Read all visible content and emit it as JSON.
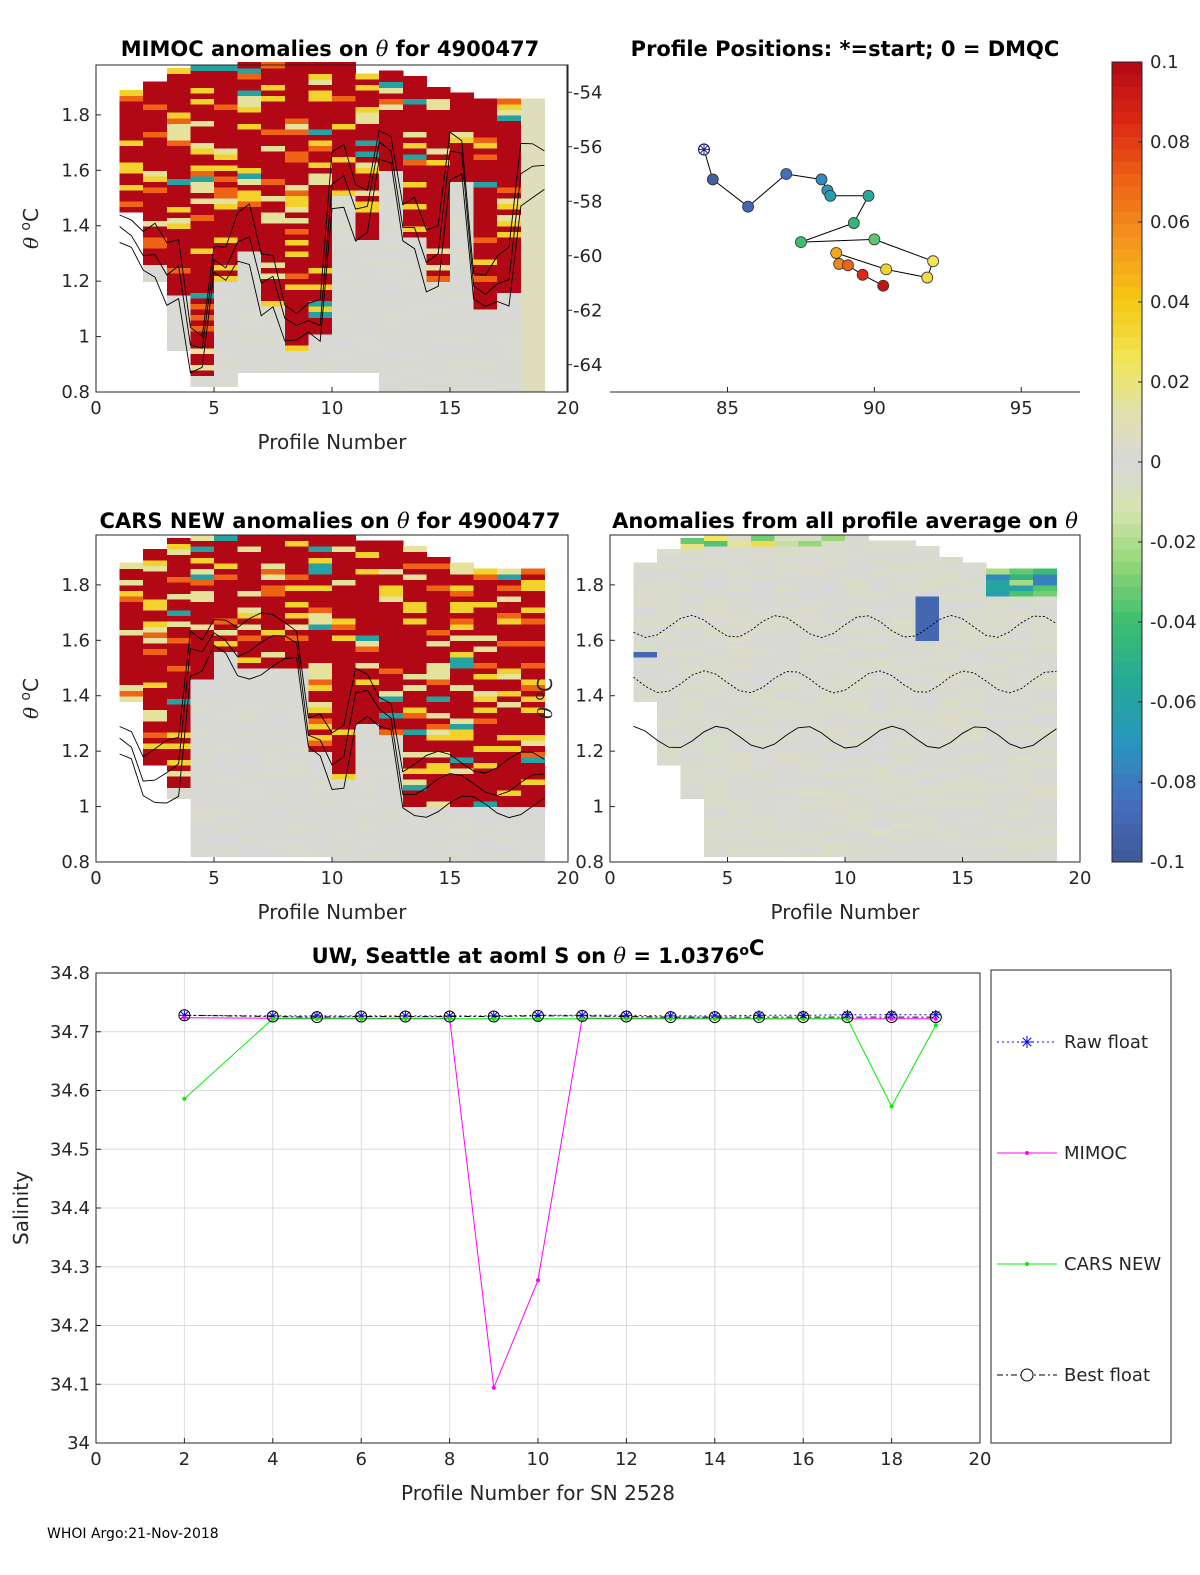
{
  "chart_data": [
    {
      "type": "heatmap",
      "id": "mimoc",
      "title": "MIMOC anomalies on θ  for 4900477",
      "xlabel": "Profile Number",
      "ylabel": "θ °C",
      "xlim": [
        0,
        20
      ],
      "ylim": [
        0.8,
        1.98
      ],
      "xticks": [
        "0",
        "5",
        "10",
        "15",
        "20"
      ],
      "yticks": [
        "0.8",
        "1",
        "1.2",
        "1.4",
        "1.6",
        "1.8"
      ]
    },
    {
      "type": "scatter",
      "id": "positions",
      "title": "Profile Positions: *=start; 0 = DMQC",
      "xlim": [
        81,
        97
      ],
      "ylim": [
        -65,
        -53
      ],
      "xticks": [
        "85",
        "90",
        "95"
      ],
      "yticks": [
        "-54",
        "-56",
        "-58",
        "-60",
        "-62",
        "-64"
      ],
      "lon": [
        84.2,
        84.5,
        85.7,
        87.0,
        88.2,
        88.4,
        88.5,
        89.8,
        89.3,
        87.5,
        90.0,
        92.0,
        91.8,
        90.4,
        88.7,
        88.8,
        89.1,
        89.6,
        90.3
      ],
      "lat": [
        -56.1,
        -57.2,
        -58.2,
        -57.0,
        -57.2,
        -57.6,
        -57.8,
        -57.8,
        -58.8,
        -59.5,
        -59.4,
        -60.2,
        -60.8,
        -60.5,
        -59.9,
        -60.3,
        -60.35,
        -60.7,
        -61.1
      ],
      "anomaly": [
        -0.1,
        -0.095,
        -0.09,
        -0.085,
        -0.075,
        -0.07,
        -0.065,
        -0.055,
        -0.045,
        -0.04,
        -0.035,
        0.025,
        0.03,
        0.035,
        0.05,
        0.06,
        0.07,
        0.085,
        0.095
      ]
    },
    {
      "type": "heatmap",
      "id": "cars",
      "title": "CARS NEW anomalies on θ for 4900477",
      "xlabel": "Profile Number",
      "ylabel": "θ °C",
      "xlim": [
        0,
        20
      ],
      "ylim": [
        0.8,
        1.98
      ],
      "xticks": [
        "0",
        "5",
        "10",
        "15",
        "20"
      ],
      "yticks": [
        "0.8",
        "1",
        "1.2",
        "1.4",
        "1.6",
        "1.8"
      ]
    },
    {
      "type": "heatmap",
      "id": "avg",
      "title": "Anomalies from all profile average on θ",
      "xlabel": "Profile Number",
      "ylabel": "θ °C",
      "xlim": [
        0,
        20
      ],
      "ylim": [
        0.8,
        1.98
      ],
      "xticks": [
        "0",
        "5",
        "10",
        "15",
        "20"
      ],
      "yticks": [
        "0.8",
        "1",
        "1.2",
        "1.4",
        "1.6",
        "1.8"
      ]
    },
    {
      "type": "line",
      "id": "salinity",
      "title": "UW, Seattle at aoml S on θ = 1.0376°C",
      "xlabel": "Profile Number for SN 2528",
      "ylabel": "Salinity",
      "xlim": [
        0,
        20
      ],
      "ylim": [
        34,
        34.8
      ],
      "xticks": [
        "0",
        "2",
        "4",
        "6",
        "8",
        "10",
        "12",
        "14",
        "16",
        "18",
        "20"
      ],
      "yticks": [
        "34",
        "34.1",
        "34.2",
        "34.3",
        "34.4",
        "34.5",
        "34.6",
        "34.7",
        "34.8"
      ],
      "x": [
        2,
        4,
        5,
        6,
        7,
        8,
        9,
        10,
        11,
        12,
        13,
        14,
        15,
        16,
        17,
        18,
        19
      ],
      "series": [
        {
          "name": "Raw float",
          "color": "#0000ff",
          "values": [
            34.728,
            34.727,
            34.727,
            34.727,
            34.727,
            34.727,
            34.727,
            34.728,
            34.728,
            34.728,
            34.727,
            34.727,
            34.728,
            34.728,
            34.729,
            34.729,
            34.729
          ]
        },
        {
          "name": "MIMOC",
          "color": "#ff00ff",
          "values": [
            34.724,
            34.723,
            34.723,
            34.723,
            34.723,
            34.723,
            34.094,
            34.277,
            34.723,
            34.723,
            34.723,
            34.723,
            34.722,
            34.722,
            34.722,
            34.722,
            34.722
          ]
        },
        {
          "name": "CARS NEW",
          "color": "#00ee00",
          "values": [
            34.586,
            34.722,
            34.722,
            34.722,
            34.722,
            34.722,
            34.722,
            34.722,
            34.722,
            34.722,
            34.722,
            34.722,
            34.722,
            34.722,
            34.722,
            34.573,
            34.711
          ]
        },
        {
          "name": "Best float",
          "color": "#000000",
          "values": [
            34.728,
            34.726,
            34.725,
            34.726,
            34.726,
            34.726,
            34.726,
            34.727,
            34.727,
            34.726,
            34.725,
            34.725,
            34.725,
            34.725,
            34.725,
            34.725,
            34.725
          ]
        }
      ]
    },
    {
      "type": "colorbar",
      "id": "colorbar",
      "range": [
        -0.1,
        0.1
      ],
      "ticks": [
        "0.1",
        "0.08",
        "0.06",
        "0.04",
        "0.02",
        "0",
        "-0.02",
        "-0.04",
        "-0.06",
        "-0.08",
        "-0.1"
      ]
    }
  ],
  "footer": "WHOI Argo:21-Nov-2018"
}
